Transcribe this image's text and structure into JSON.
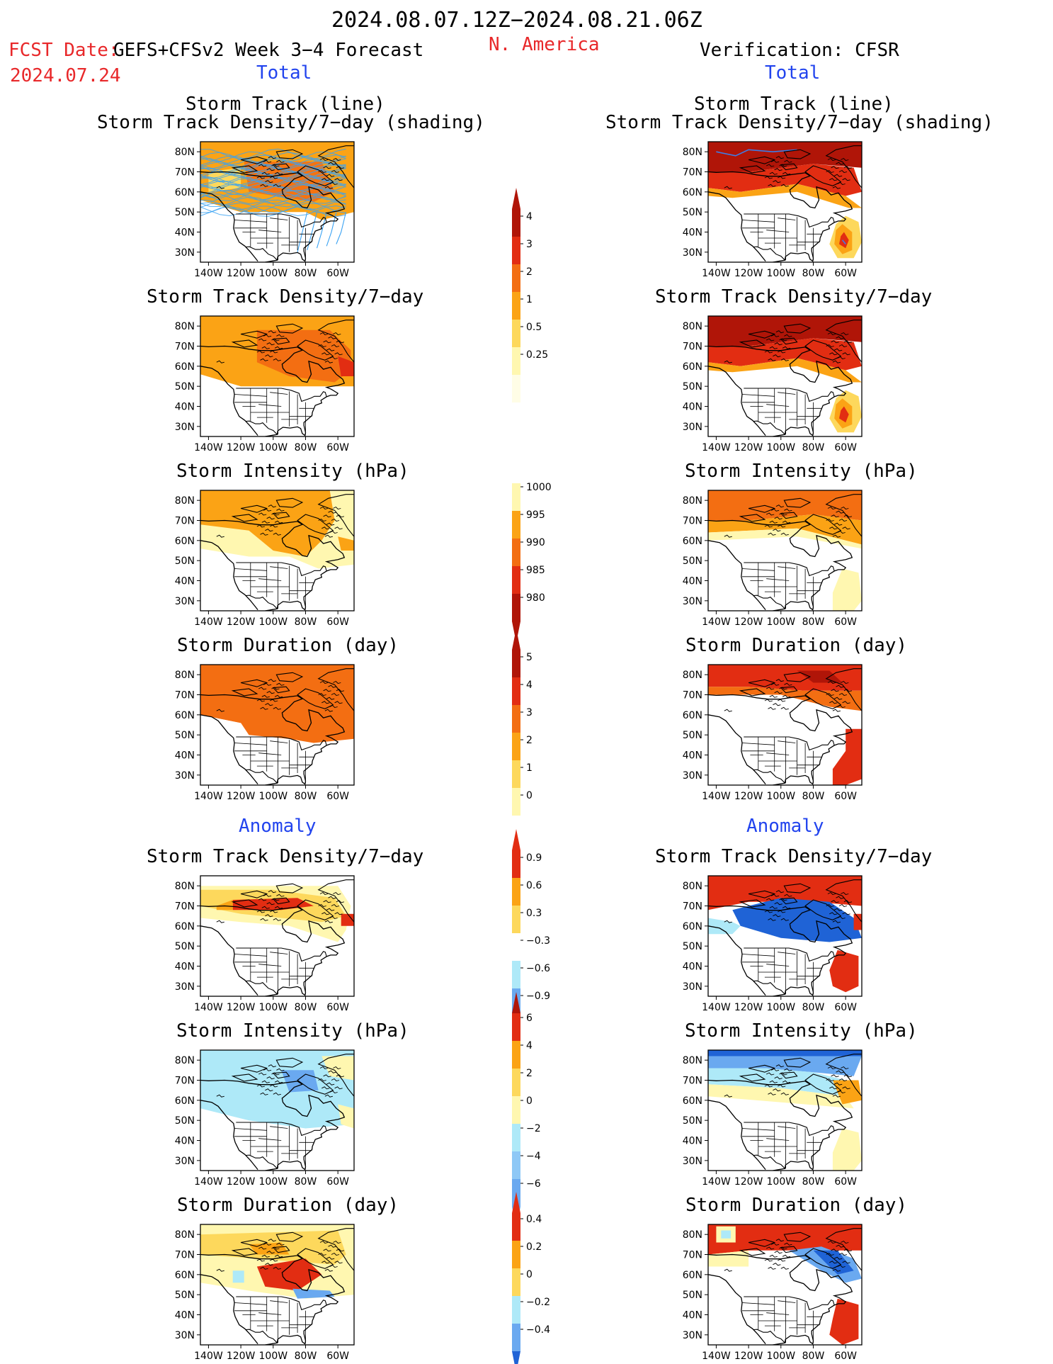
{
  "header": {
    "date_range": "2024.08.07.12Z−2024.08.21.06Z",
    "fcst_prefix": "FCST Date:",
    "fcst_model": "GEFS+CFSv2 Week 3−4 Forecast",
    "fcst_date": "2024.07.24",
    "region": "N. America",
    "verification": "Verification: CFSR",
    "total_left": "Total",
    "total_right": "Total",
    "anomaly_left": "Anomaly",
    "anomaly_right": "Anomaly"
  },
  "axes": {
    "lat_labels": [
      "80N",
      "70N",
      "60N",
      "50N",
      "40N",
      "30N"
    ],
    "lon_labels": [
      "140W",
      "120W",
      "100W",
      "80W",
      "60W"
    ]
  },
  "panels": {
    "track_title_1": "Storm Track (line)",
    "track_title_2": "Storm Track Density/7−day (shading)",
    "density": "Storm Track Density/7−day",
    "intensity": "Storm Intensity (hPa)",
    "duration": "Storm Duration (day)"
  },
  "colorbars": {
    "density_total": [
      "4",
      "3",
      "2",
      "1",
      "0.5",
      "0.25"
    ],
    "intensity_total": [
      "1000",
      "995",
      "990",
      "985",
      "980"
    ],
    "duration_total": [
      "5",
      "4",
      "3",
      "2",
      "1",
      "0"
    ],
    "density_anom": [
      "0.9",
      "0.6",
      "0.3",
      "−0.3",
      "−0.6",
      "−0.9"
    ],
    "intensity_anom": [
      "6",
      "4",
      "2",
      "0",
      "−2",
      "−4",
      "−6"
    ],
    "duration_anom": [
      "0.4",
      "0.2",
      "0",
      "−0.2",
      "−0.4"
    ]
  },
  "colors": {
    "pale": "#fff7b0",
    "yellow": "#fdd85c",
    "orange": "#fba315",
    "dkorange": "#f36e12",
    "red": "#e22d12",
    "dkred": "#b01508",
    "ltblue": "#aee9f8",
    "blue": "#6aa9f0",
    "dkblue": "#1f63d6",
    "track_model": "#3aa2f2",
    "track_obs": "#3c7ee8"
  }
}
